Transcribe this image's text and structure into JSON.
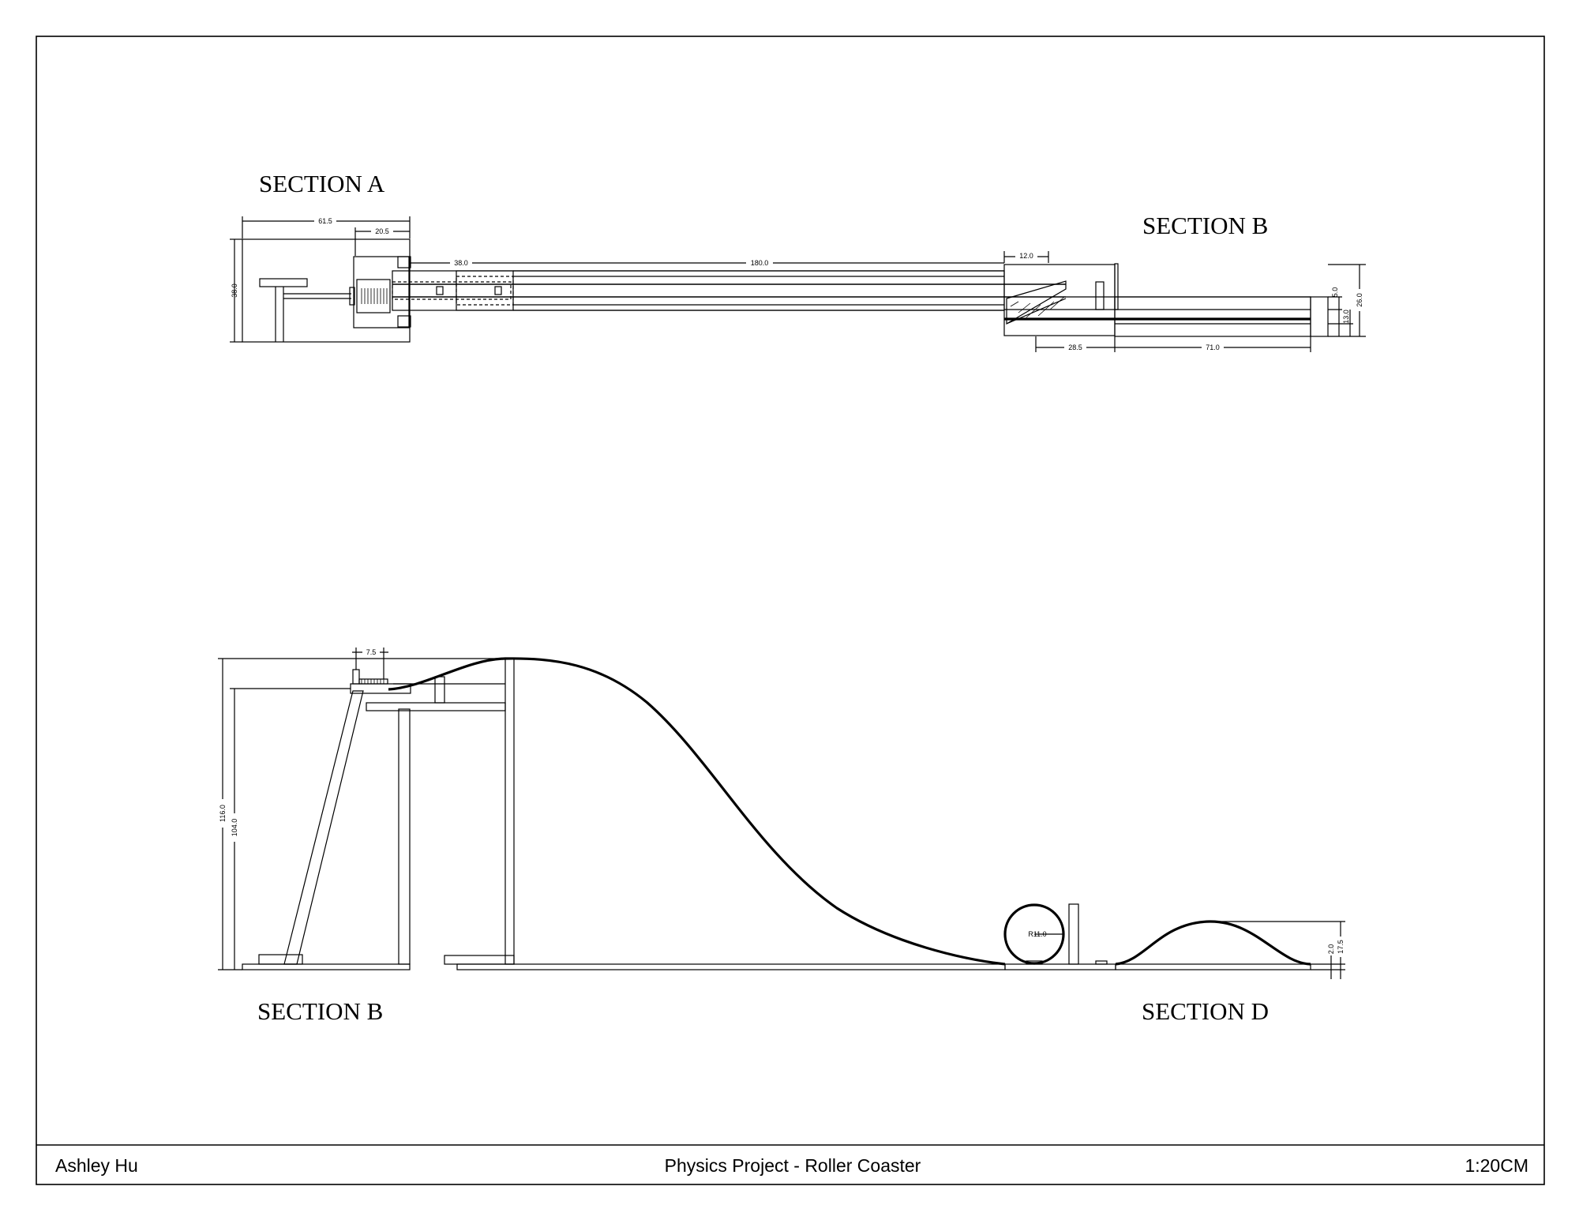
{
  "sections": {
    "top_left": "SECTION A",
    "top_right": "SECTION B",
    "bottom_left": "SECTION B",
    "bottom_right": "SECTION D"
  },
  "dimensions": {
    "d61_5": "61.5",
    "d20_5": "20.5",
    "d38_v": "38.0",
    "d38_h": "38.0",
    "d180": "180.0",
    "d12": "12.0",
    "d28_5": "28.5",
    "d71": "71.0",
    "d5": "5.0",
    "d13": "13.0",
    "d26": "26.0",
    "d7_5": "7.5",
    "d116": "116.0",
    "d104": "104.0",
    "r11": "R11.0",
    "d2": "2.0",
    "d17_5": "17.5"
  },
  "title_block": {
    "author": "Ashley Hu",
    "title": "Physics Project - Roller Coaster",
    "scale": "1:20CM"
  }
}
